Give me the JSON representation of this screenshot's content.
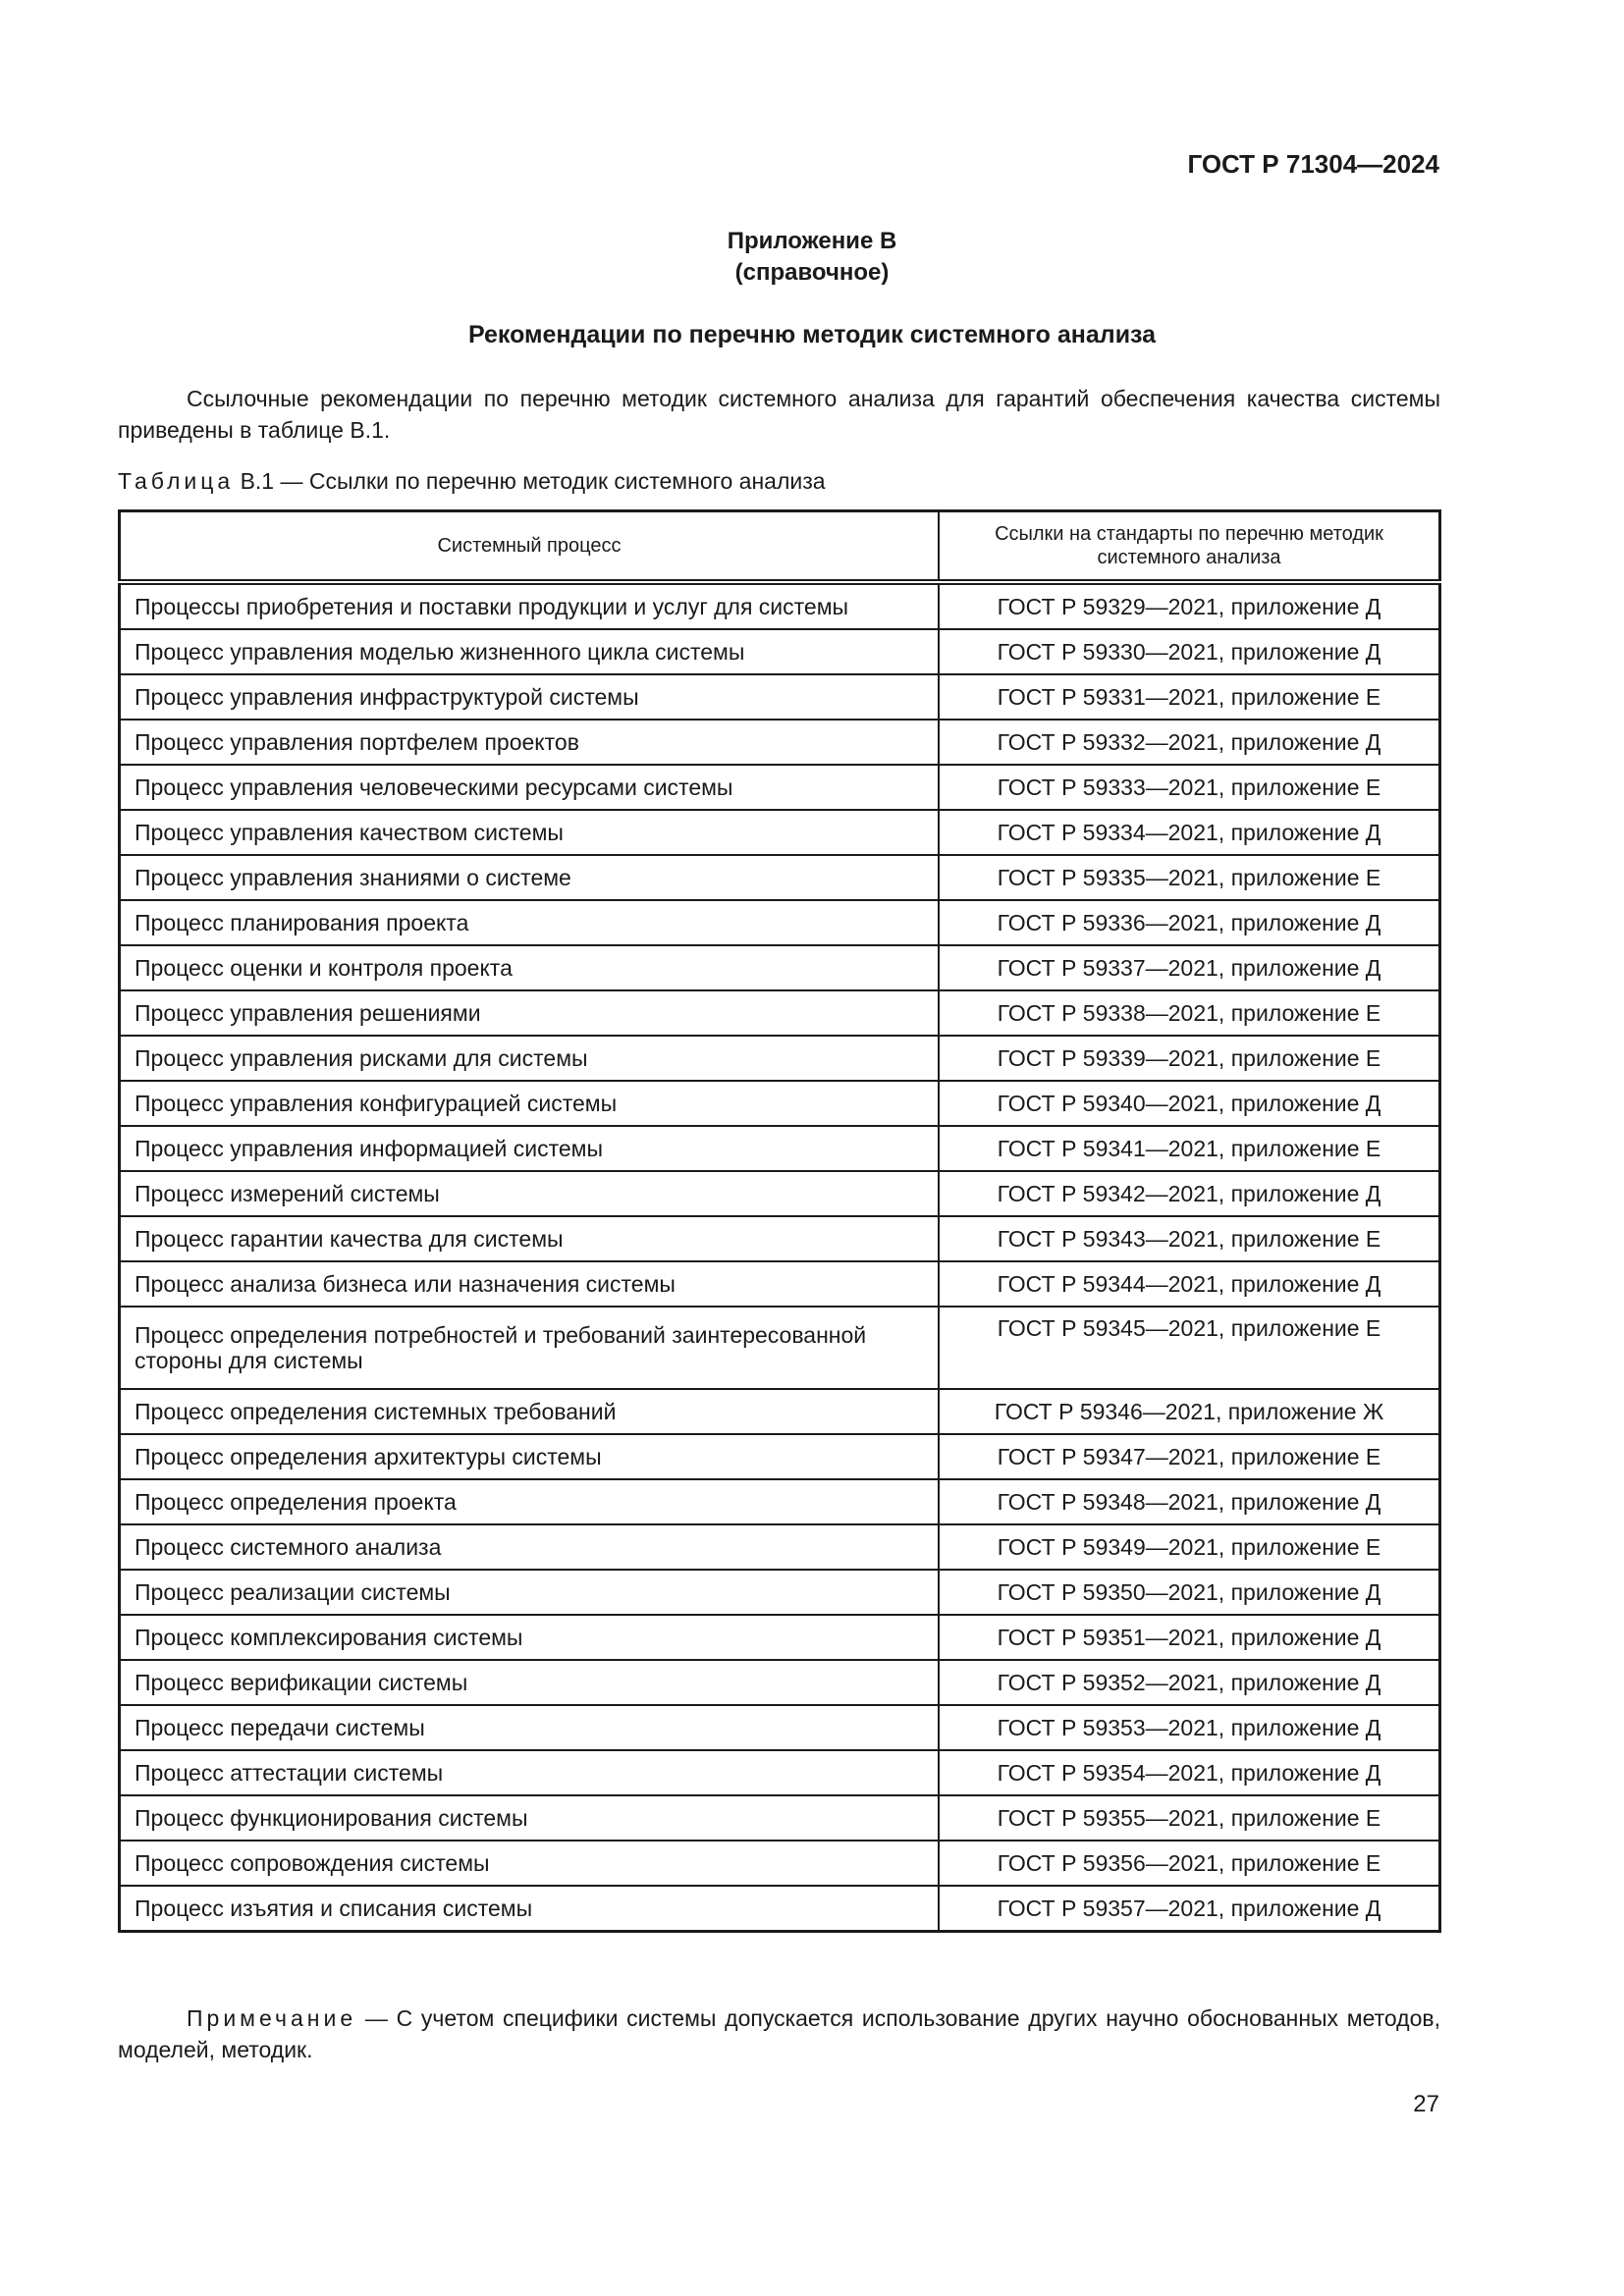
{
  "header": {
    "doc_id": "ГОСТ Р 71304—2024"
  },
  "annex": {
    "title": "Приложение В",
    "status": "(справочное)"
  },
  "section_title": "Рекомендации по перечню методик системного анализа",
  "intro": "Ссылочные рекомендации по перечню методик системного анализа для гарантий обеспечения качества системы приведены в таблице В.1.",
  "table": {
    "caption_label": "Таблица",
    "caption_text": "В.1 — Ссылки по перечню методик системного анализа",
    "columns": [
      "Системный процесс",
      "Ссылки на стандарты по перечню методик системного анализа"
    ],
    "rows": [
      [
        "Процессы приобретения и поставки продукции и услуг для системы",
        "ГОСТ Р 59329—2021, приложение Д"
      ],
      [
        "Процесс управления моделью жизненного цикла системы",
        "ГОСТ Р 59330—2021, приложение Д"
      ],
      [
        "Процесс управления инфраструктурой системы",
        "ГОСТ Р 59331—2021, приложение Е"
      ],
      [
        "Процесс управления портфелем проектов",
        "ГОСТ Р 59332—2021, приложение Д"
      ],
      [
        "Процесс управления человеческими ресурсами системы",
        "ГОСТ Р 59333—2021, приложение Е"
      ],
      [
        "Процесс управления качеством системы",
        "ГОСТ Р 59334—2021, приложение Д"
      ],
      [
        "Процесс управления знаниями о системе",
        "ГОСТ Р 59335—2021, приложение Е"
      ],
      [
        "Процесс планирования проекта",
        "ГОСТ Р 59336—2021, приложение Д"
      ],
      [
        "Процесс оценки и контроля проекта",
        "ГОСТ Р 59337—2021, приложение Д"
      ],
      [
        "Процесс управления решениями",
        "ГОСТ Р 59338—2021, приложение Е"
      ],
      [
        "Процесс управления рисками для системы",
        "ГОСТ Р 59339—2021, приложение Е"
      ],
      [
        "Процесс управления конфигурацией системы",
        "ГОСТ Р 59340—2021, приложение Д"
      ],
      [
        "Процесс управления информацией системы",
        "ГОСТ Р 59341—2021, приложение Е"
      ],
      [
        "Процесс измерений системы",
        "ГОСТ Р 59342—2021, приложение Д"
      ],
      [
        "Процесс гарантии качества для системы",
        "ГОСТ Р 59343—2021, приложение Е"
      ],
      [
        "Процесс анализа бизнеса или назначения системы",
        "ГОСТ Р 59344—2021, приложение Д"
      ],
      [
        "Процесс определения потребностей и требований заинтересованной стороны для системы",
        "ГОСТ Р 59345—2021, приложение Е"
      ],
      [
        "Процесс определения системных требований",
        "ГОСТ Р 59346—2021, приложение Ж"
      ],
      [
        "Процесс определения архитектуры системы",
        "ГОСТ Р 59347—2021, приложение Е"
      ],
      [
        "Процесс определения проекта",
        "ГОСТ Р 59348—2021, приложение Д"
      ],
      [
        "Процесс системного анализа",
        "ГОСТ Р 59349—2021, приложение Е"
      ],
      [
        "Процесс реализации системы",
        "ГОСТ Р 59350—2021, приложение Д"
      ],
      [
        "Процесс комплексирования системы",
        "ГОСТ Р 59351—2021, приложение Д"
      ],
      [
        "Процесс верификации системы",
        "ГОСТ Р 59352—2021, приложение Д"
      ],
      [
        "Процесс передачи системы",
        "ГОСТ Р 59353—2021, приложение Д"
      ],
      [
        "Процесс аттестации системы",
        "ГОСТ Р 59354—2021, приложение Д"
      ],
      [
        "Процесс функционирования системы",
        "ГОСТ Р 59355—2021, приложение Е"
      ],
      [
        "Процесс сопровождения системы",
        "ГОСТ Р 59356—2021, приложение Е"
      ],
      [
        "Процесс изъятия и списания системы",
        "ГОСТ Р 59357—2021, приложение Д"
      ]
    ]
  },
  "note": {
    "label": "Примечание",
    "text": " — С учетом специфики системы допускается использование других научно обоснованных методов, моделей, методик."
  },
  "page_number": "27"
}
